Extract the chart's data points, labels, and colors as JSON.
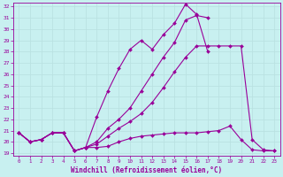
{
  "xlabel": "Windchill (Refroidissement éolien,°C)",
  "bg_color": "#c8f0f0",
  "grid_color": "#b8e0e0",
  "line_color": "#990099",
  "xlim": [
    -0.5,
    23.5
  ],
  "ylim": [
    18.8,
    32.3
  ],
  "xticks": [
    0,
    1,
    2,
    3,
    4,
    5,
    6,
    7,
    8,
    9,
    10,
    11,
    12,
    13,
    14,
    15,
    16,
    17,
    18,
    19,
    20,
    21,
    22,
    23
  ],
  "yticks": [
    19,
    20,
    21,
    22,
    23,
    24,
    25,
    26,
    27,
    28,
    29,
    30,
    31,
    32
  ],
  "series": [
    {
      "x": [
        0,
        1,
        2,
        3,
        4,
        5,
        6,
        7,
        8,
        9,
        10,
        11,
        12,
        13,
        14,
        15,
        16,
        17,
        18,
        19,
        20,
        21,
        22,
        23
      ],
      "y": [
        20.8,
        20.0,
        20.2,
        20.8,
        20.8,
        19.2,
        19.5,
        19.5,
        19.6,
        20.0,
        20.3,
        20.5,
        20.6,
        20.7,
        20.8,
        20.8,
        20.8,
        20.9,
        21.0,
        21.4,
        20.2,
        19.3,
        19.2,
        19.2
      ]
    },
    {
      "x": [
        0,
        1,
        2,
        3,
        4,
        5,
        6,
        7,
        8,
        9,
        10,
        11,
        12,
        13,
        14,
        15,
        16,
        17,
        18,
        19,
        20,
        21,
        22,
        23
      ],
      "y": [
        20.8,
        20.0,
        20.2,
        20.8,
        20.8,
        19.2,
        19.5,
        19.8,
        20.5,
        21.2,
        21.8,
        22.5,
        23.5,
        24.8,
        26.2,
        27.5,
        28.5,
        28.5,
        28.5,
        28.5,
        28.5,
        20.2,
        19.3,
        19.2
      ]
    },
    {
      "x": [
        0,
        1,
        2,
        3,
        4,
        5,
        6,
        7,
        8,
        9,
        10,
        11,
        12,
        13,
        14,
        15,
        16,
        17,
        18,
        19,
        20,
        21,
        22,
        23
      ],
      "y": [
        20.8,
        20.0,
        20.2,
        20.8,
        20.8,
        19.2,
        19.5,
        22.2,
        24.5,
        26.5,
        28.2,
        29.0,
        28.2,
        29.5,
        30.5,
        32.2,
        31.3,
        28.0,
        null,
        null,
        null,
        null,
        null,
        null
      ]
    },
    {
      "x": [
        0,
        1,
        2,
        3,
        4,
        5,
        6,
        7,
        8,
        9,
        10,
        11,
        12,
        13,
        14,
        15,
        16,
        17,
        18,
        19,
        20,
        21,
        22,
        23
      ],
      "y": [
        20.8,
        20.0,
        20.2,
        20.8,
        20.8,
        19.2,
        19.5,
        20.0,
        21.2,
        22.0,
        23.0,
        24.5,
        26.0,
        27.5,
        28.8,
        30.8,
        31.2,
        31.0,
        null,
        null,
        null,
        null,
        null,
        null
      ]
    }
  ]
}
